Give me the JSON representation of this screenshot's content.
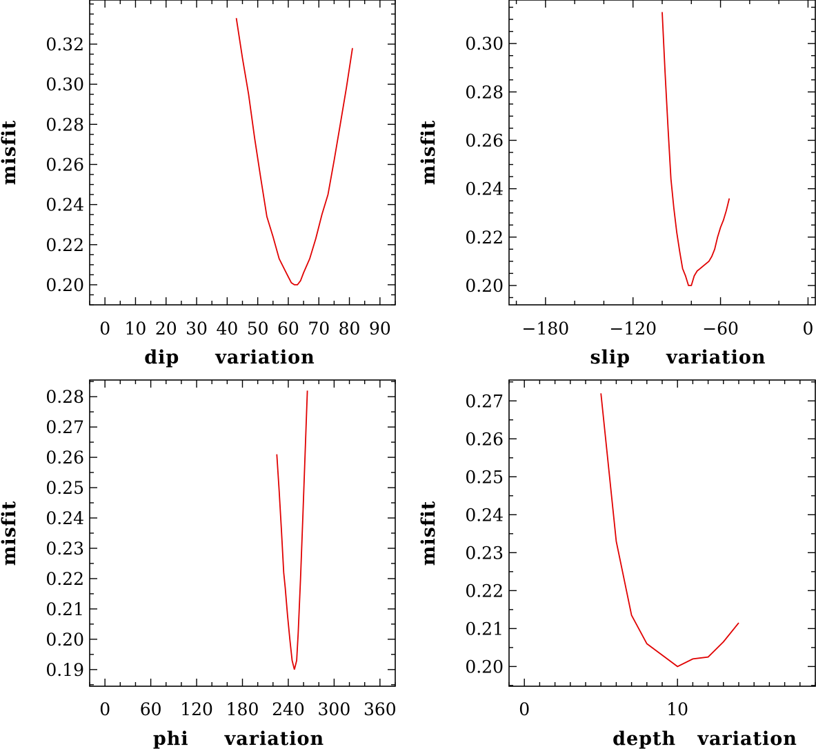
{
  "chart_data": [
    {
      "type": "line",
      "id": "dip",
      "title": "",
      "xlabel": "dip     variation",
      "ylabel": "misfit",
      "xlim": [
        -5,
        95
      ],
      "ylim": [
        0.19,
        0.342
      ],
      "x_ticks": [
        0,
        10,
        20,
        30,
        40,
        50,
        60,
        70,
        80,
        90
      ],
      "x_tick_labels": [
        "0",
        "10",
        "20",
        "30",
        "40",
        "50",
        "60",
        "70",
        "80",
        "90"
      ],
      "x_minor_step": 5,
      "y_ticks": [
        0.2,
        0.22,
        0.24,
        0.26,
        0.28,
        0.3,
        0.32
      ],
      "y_tick_labels": [
        "0.20",
        "0.22",
        "0.24",
        "0.26",
        "0.28",
        "0.30",
        "0.32"
      ],
      "y_minor_step": 0.005,
      "series": [
        {
          "name": "misfit",
          "color": "#e00000",
          "x": [
            43,
            45,
            47,
            49,
            51,
            53,
            55,
            57,
            59,
            60,
            61,
            62,
            63,
            64,
            65,
            67,
            69,
            71,
            73,
            75,
            77,
            79,
            81
          ],
          "y": [
            0.333,
            0.313,
            0.295,
            0.273,
            0.253,
            0.234,
            0.224,
            0.213,
            0.207,
            0.204,
            0.201,
            0.2,
            0.2,
            0.202,
            0.206,
            0.213,
            0.223,
            0.235,
            0.245,
            0.262,
            0.28,
            0.298,
            0.318
          ]
        }
      ]
    },
    {
      "type": "line",
      "id": "slip",
      "title": "",
      "xlabel": "slip     variation",
      "ylabel": "misfit",
      "xlim": [
        -205,
        5
      ],
      "ylim": [
        0.192,
        0.318
      ],
      "x_ticks": [
        -180,
        -120,
        -60,
        0
      ],
      "x_tick_labels": [
        "−180",
        "−120",
        "−60",
        "0"
      ],
      "x_minor_step": 20,
      "y_ticks": [
        0.2,
        0.22,
        0.24,
        0.26,
        0.28,
        0.3
      ],
      "y_tick_labels": [
        "0.20",
        "0.22",
        "0.24",
        "0.26",
        "0.28",
        "0.30"
      ],
      "y_minor_step": 0.005,
      "series": [
        {
          "name": "misfit",
          "color": "#e00000",
          "x": [
            -100,
            -98,
            -96,
            -94,
            -92,
            -90,
            -88,
            -86,
            -84,
            -82,
            -80,
            -78,
            -76,
            -74,
            -72,
            -70,
            -68,
            -66,
            -64,
            -62,
            -60,
            -58,
            -56,
            -54
          ],
          "y": [
            0.313,
            0.288,
            0.265,
            0.244,
            0.232,
            0.222,
            0.214,
            0.207,
            0.204,
            0.2,
            0.2,
            0.204,
            0.206,
            0.207,
            0.208,
            0.209,
            0.21,
            0.212,
            0.215,
            0.22,
            0.224,
            0.227,
            0.231,
            0.236
          ]
        }
      ]
    },
    {
      "type": "line",
      "id": "phi",
      "title": "",
      "xlabel": "phi     variation",
      "ylabel": "misfit",
      "xlim": [
        -20,
        380
      ],
      "ylim": [
        0.1845,
        0.2855
      ],
      "x_ticks": [
        0,
        60,
        120,
        180,
        240,
        300,
        360
      ],
      "x_tick_labels": [
        "0",
        "60",
        "120",
        "180",
        "240",
        "300",
        "360"
      ],
      "x_minor_step": 20,
      "y_ticks": [
        0.19,
        0.2,
        0.21,
        0.22,
        0.23,
        0.24,
        0.25,
        0.26,
        0.27,
        0.28
      ],
      "y_tick_labels": [
        "0.19",
        "0.20",
        "0.21",
        "0.22",
        "0.23",
        "0.24",
        "0.25",
        "0.26",
        "0.27",
        "0.28"
      ],
      "y_minor_step": 0.005,
      "series": [
        {
          "name": "misfit",
          "color": "#e00000",
          "x": [
            225,
            228,
            231,
            234,
            236,
            239,
            242,
            245,
            248,
            251,
            253,
            256,
            259,
            262,
            265
          ],
          "y": [
            0.261,
            0.249,
            0.236,
            0.222,
            0.217,
            0.208,
            0.2,
            0.193,
            0.19,
            0.193,
            0.202,
            0.22,
            0.24,
            0.261,
            0.282
          ]
        }
      ]
    },
    {
      "type": "line",
      "id": "depth",
      "title": "",
      "xlabel": "depth   variation",
      "ylabel": "misfit",
      "xlim": [
        -1,
        19
      ],
      "ylim": [
        0.1948,
        0.2755
      ],
      "x_ticks": [
        0,
        10
      ],
      "x_tick_labels": [
        "0",
        "10"
      ],
      "x_minor_step": 1,
      "y_ticks": [
        0.2,
        0.21,
        0.22,
        0.23,
        0.24,
        0.25,
        0.26,
        0.27
      ],
      "y_tick_labels": [
        "0.20",
        "0.21",
        "0.22",
        "0.23",
        "0.24",
        "0.25",
        "0.26",
        "0.27"
      ],
      "y_minor_step": 0.005,
      "series": [
        {
          "name": "misfit",
          "color": "#e00000",
          "x": [
            5,
            6,
            7,
            8,
            9,
            10,
            11,
            12,
            13,
            14
          ],
          "y": [
            0.272,
            0.233,
            0.2135,
            0.206,
            0.203,
            0.2,
            0.202,
            0.2025,
            0.2065,
            0.2115
          ]
        }
      ]
    }
  ]
}
